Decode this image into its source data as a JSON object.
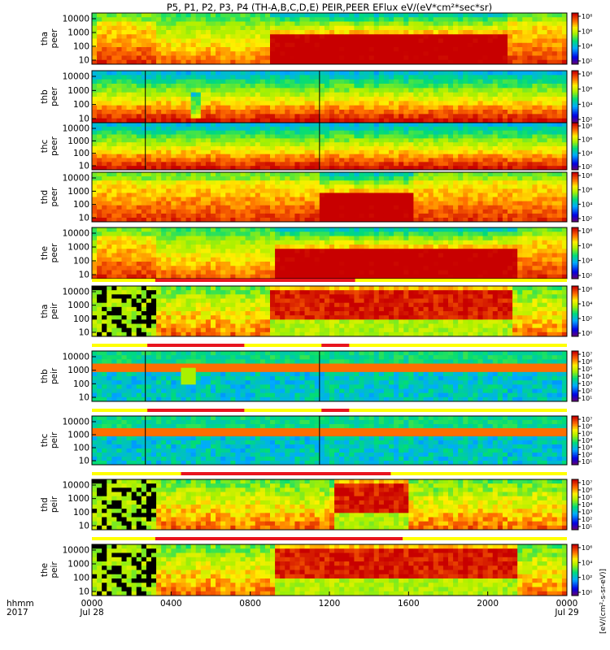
{
  "chart_data": [
    {
      "type": "heatmap",
      "title": "P5, P1, P2, P3, P4 (TH-A,B,C,D,E) PEIR,PEER EFlux eV/(eV*cm²*sec*sr)",
      "x_time_labels": [
        "0000",
        "0400",
        "0800",
        "1200",
        "1600",
        "2000",
        "0000"
      ],
      "x_date_labels": [
        "Jul 28",
        "Jul 29"
      ],
      "x_axis_title": [
        "hhmm",
        "2017"
      ],
      "x_hours": [
        0,
        4,
        8,
        12,
        16,
        20,
        24
      ],
      "y_scale": "log",
      "y_tick_labels": [
        "10",
        "100",
        "1000",
        "10000"
      ],
      "colorbar_label": "[eV/(cm²-s-sr-eV)]",
      "panels": [
        {
          "probe": "tha",
          "species": "peer",
          "ylabel": [
            "tha",
            "peer"
          ],
          "cb_ticks": [
            "10⁸",
            "10⁶",
            "10⁴",
            "10²"
          ],
          "cb_exp": [
            8,
            2
          ],
          "mode": "electron-active",
          "onset": 9.1,
          "quiet": [
            [
              0.3,
              3.3
            ],
            [
              21.0,
              24
            ]
          ],
          "bars": []
        },
        {
          "probe": "thb",
          "species": "peer",
          "ylabel": [
            "thb",
            "peer"
          ],
          "cb_ticks": [
            "10⁸",
            "10⁶",
            "10⁴",
            "10²"
          ],
          "cb_exp": [
            8,
            2
          ],
          "mode": "electron-steady",
          "dip": [
            4.9,
            5.5
          ],
          "lines": [
            2.7,
            11.5
          ],
          "bars": []
        },
        {
          "probe": "thc",
          "species": "peer",
          "ylabel": [
            "thc",
            "peer"
          ],
          "cb_ticks": [
            "10⁸",
            "10⁶",
            "10⁴",
            "10²"
          ],
          "cb_exp": [
            8,
            2
          ],
          "mode": "electron-steady",
          "lines": [
            2.7,
            11.5
          ],
          "bars": []
        },
        {
          "probe": "thd",
          "species": "peer",
          "ylabel": [
            "thd",
            "peer"
          ],
          "cb_ticks": [
            "10⁸",
            "10⁶",
            "10⁴",
            "10²"
          ],
          "cb_exp": [
            8,
            2
          ],
          "mode": "electron-active",
          "onset": 11.6,
          "quiet": [
            [
              0.0,
              11.4
            ],
            [
              16.3,
              24
            ]
          ],
          "bars": []
        },
        {
          "probe": "the",
          "species": "peer",
          "ylabel": [
            "the",
            "peer"
          ],
          "cb_ticks": [
            "10⁸",
            "10⁶",
            "10⁴",
            "10²"
          ],
          "cb_exp": [
            8,
            2
          ],
          "mode": "electron-active",
          "onset": 9.2,
          "quiet": [
            [
              0.3,
              3.3
            ],
            [
              21.6,
              24
            ]
          ],
          "bars": []
        },
        {
          "probe": "tha",
          "species": "peir",
          "ylabel": [
            "tha",
            "peir"
          ],
          "cb_ticks": [
            "10⁶",
            "10⁴",
            "10²",
            "10⁰"
          ],
          "cb_exp": [
            6,
            0
          ],
          "mode": "ion-active",
          "onset": 9.1,
          "end": 21.2,
          "bars": [
            [
              3.2,
              13.3
            ]
          ]
        },
        {
          "probe": "thb",
          "species": "peir",
          "ylabel": [
            "thb",
            "peir"
          ],
          "cb_ticks": [
            "10⁷",
            "10⁶",
            "10⁵",
            "10⁴",
            "10³",
            "10²",
            "10¹"
          ],
          "cb_exp": [
            7,
            1
          ],
          "mode": "ion-band",
          "dip": [
            4.6,
            5.2
          ],
          "lines": [
            2.7,
            11.5
          ],
          "bars": [
            [
              2.8,
              7.7
            ],
            [
              11.6,
              13.0
            ]
          ]
        },
        {
          "probe": "thc",
          "species": "peir",
          "ylabel": [
            "thc",
            "peir"
          ],
          "cb_ticks": [
            "10⁷",
            "10⁶",
            "10⁵",
            "10⁴",
            "10³",
            "10²",
            "10¹"
          ],
          "cb_exp": [
            7,
            1
          ],
          "mode": "ion-band",
          "lines": [
            2.7,
            11.5
          ],
          "bars": [
            [
              2.8,
              7.7
            ],
            [
              11.6,
              13.0
            ]
          ]
        },
        {
          "probe": "thd",
          "species": "peir",
          "ylabel": [
            "thd",
            "peir"
          ],
          "cb_ticks": [
            "10⁷",
            "10⁶",
            "10⁵",
            "10⁴",
            "10³",
            "10²",
            "10¹"
          ],
          "cb_exp": [
            7,
            1
          ],
          "mode": "ion-active",
          "onset": 12.2,
          "end": 16.0,
          "bars": [
            [
              4.5,
              15.1
            ]
          ]
        },
        {
          "probe": "the",
          "species": "peir",
          "ylabel": [
            "the",
            "peir"
          ],
          "cb_ticks": [
            "10⁶",
            "10⁴",
            "10²",
            "10⁰"
          ],
          "cb_exp": [
            6,
            0
          ],
          "mode": "ion-active",
          "onset": 9.2,
          "end": 21.4,
          "bars": [
            [
              3.2,
              15.7
            ]
          ]
        }
      ],
      "colors": {
        "bar_red": "#e8141e",
        "bar_yellow": "#ffff00",
        "fill_black": "#000000"
      }
    }
  ]
}
